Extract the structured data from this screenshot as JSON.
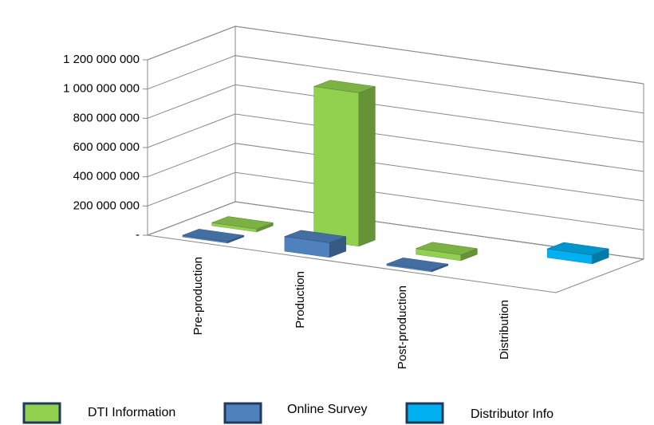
{
  "chart_data": {
    "type": "bar3d",
    "categories": [
      "Pre-production",
      "Production",
      "Post-production",
      "Distribution"
    ],
    "series": [
      {
        "name": "DTI Information",
        "color": "#92d050",
        "values": [
          20000000,
          1050000000,
          40000000,
          null
        ]
      },
      {
        "name": "Online Survey",
        "color": "#4f81bd",
        "values": [
          10000000,
          100000000,
          10000000,
          null
        ]
      },
      {
        "name": "Distributor Info",
        "color": "#00b0f0",
        "values": [
          null,
          null,
          null,
          60000000
        ]
      }
    ],
    "ylim": [
      0,
      1200000000
    ],
    "yticks": [
      {
        "value": 0,
        "label": "-"
      },
      {
        "value": 200000000,
        "label": "200 000 000"
      },
      {
        "value": 400000000,
        "label": "400 000 000"
      },
      {
        "value": 600000000,
        "label": "600 000 000"
      },
      {
        "value": 800000000,
        "label": "800 000 000"
      },
      {
        "value": 1000000000,
        "label": "1 000 000 000"
      },
      {
        "value": 1200000000,
        "label": "1 200 000 000"
      }
    ],
    "grid": true
  }
}
